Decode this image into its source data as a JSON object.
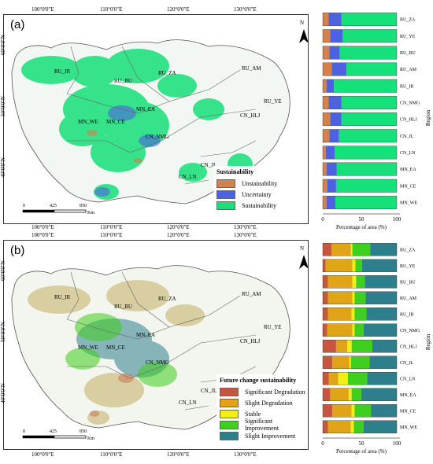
{
  "coords": {
    "lon": [
      "100°0'0\"E",
      "110°0'0\"E",
      "120°0'0\"E",
      "130°0'0\"E"
    ],
    "lat": [
      "60°0'0\"N",
      "50°0'0\"N",
      "40°0'0\"N"
    ]
  },
  "north_label": "N",
  "scale": {
    "ticks": [
      "0",
      "425",
      "850"
    ],
    "unit": "Km"
  },
  "panel_a": {
    "label": "(a)",
    "map_regions": [
      "RU_IR",
      "RU_BU",
      "RU_ZA",
      "RU_AM",
      "MN_EA",
      "MN_CE",
      "MN_WE",
      "CN_NMG",
      "CN_HLJ",
      "RU_YE",
      "CN_JL",
      "CN_LN"
    ],
    "legend": {
      "title": "Sustainability",
      "items": [
        {
          "label": "Unstainability",
          "color": "#d4814b"
        },
        {
          "label": "Uncertainty",
          "color": "#4d62e0"
        },
        {
          "label": "Sustainability",
          "color": "#16e07a"
        }
      ]
    },
    "chart_data": {
      "type": "bar",
      "orientation": "horizontal-stacked",
      "categories": [
        "RU_ZA",
        "RU_YE",
        "RU_BU",
        "RU_AM",
        "RU_IR",
        "CN_NMG",
        "CN_HLJ",
        "CN_JL",
        "CN_LN",
        "MN_EA",
        "MN_CE",
        "MN_WE"
      ],
      "series": [
        {
          "name": "Unstainability",
          "color": "#d4814b",
          "values": [
            8,
            10,
            9,
            12,
            5,
            8,
            10,
            9,
            4,
            5,
            6,
            5
          ]
        },
        {
          "name": "Uncertainty",
          "color": "#4d62e0",
          "values": [
            17,
            17,
            14,
            20,
            10,
            17,
            15,
            13,
            12,
            14,
            12,
            12
          ]
        },
        {
          "name": "Sustainability",
          "color": "#16e07a",
          "values": [
            75,
            73,
            77,
            68,
            85,
            75,
            75,
            78,
            84,
            81,
            82,
            83
          ]
        }
      ],
      "xlabel": "Percentage of area (%)",
      "ylabel": "Region",
      "xlim": [
        0,
        100
      ],
      "xticks": [
        "0",
        "50",
        "100"
      ]
    }
  },
  "panel_b": {
    "label": "(b)",
    "map_regions": [
      "RU_IR",
      "RU_BU",
      "RU_ZA",
      "RU_AM",
      "MN_EA",
      "MN_CE",
      "MN_WE",
      "CN_NMG",
      "CN_HLJ",
      "RU_YE",
      "CN_JL",
      "CN_LN"
    ],
    "legend": {
      "title": "Future change sustainability",
      "items": [
        {
          "label": "Significant Degradation",
          "color": "#c8553d"
        },
        {
          "label": "Slight Degradation",
          "color": "#e0a516"
        },
        {
          "label": "Stable",
          "color": "#f2ee16"
        },
        {
          "label": "Significant Improvement",
          "color": "#3fcf1e"
        },
        {
          "label": "Slight Improvement",
          "color": "#2e7f8c"
        }
      ]
    },
    "chart_data": {
      "type": "bar",
      "orientation": "horizontal-stacked",
      "categories": [
        "RU_ZA",
        "RU_YE",
        "RU_BU",
        "RU_AM",
        "RU_IR",
        "CN_NMG",
        "CN_HLJ",
        "CN_JL",
        "CN_LN",
        "MN_EA",
        "MN_CE",
        "MN_WE"
      ],
      "series": [
        {
          "name": "Significant Degradation",
          "color": "#c8553d",
          "values": [
            12,
            4,
            7,
            7,
            7,
            6,
            18,
            13,
            8,
            10,
            13,
            7
          ]
        },
        {
          "name": "Slight Degradation",
          "color": "#e0a516",
          "values": [
            26,
            36,
            33,
            33,
            32,
            34,
            15,
            23,
            13,
            25,
            26,
            31
          ]
        },
        {
          "name": "Stable",
          "color": "#f2ee16",
          "values": [
            2,
            4,
            5,
            3,
            4,
            3,
            6,
            2,
            13,
            4,
            4,
            4
          ]
        },
        {
          "name": "Significant Improvement",
          "color": "#3fcf1e",
          "values": [
            24,
            9,
            12,
            15,
            16,
            12,
            28,
            25,
            26,
            13,
            22,
            13
          ]
        },
        {
          "name": "Slight Improvement",
          "color": "#2e7f8c",
          "values": [
            36,
            47,
            43,
            42,
            41,
            45,
            33,
            37,
            40,
            48,
            35,
            45
          ]
        }
      ],
      "xlabel": "Percentage of area (%)",
      "ylabel": "Region",
      "xlim": [
        0,
        100
      ],
      "xticks": [
        "0",
        "50",
        "100"
      ]
    }
  }
}
